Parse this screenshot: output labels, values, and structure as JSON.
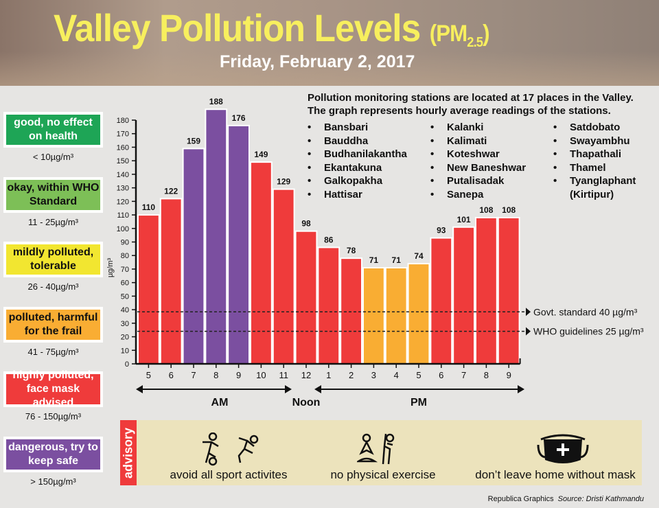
{
  "header": {
    "title": "Valley Pollution Levels",
    "pm": "(PM",
    "pm_sub": "2.5",
    "pm_close": ")",
    "date": "Friday, February 2, 2017"
  },
  "legend": [
    {
      "label": "good, no effect on health",
      "range": "< 10µg/m³",
      "color": "#1ea556",
      "text_color": "#ffffff"
    },
    {
      "label": "okay, within WHO Standard",
      "range": "11 - 25µg/m³",
      "color": "#7dbf57",
      "text_color": "#111111"
    },
    {
      "label": "mildly polluted, tolerable",
      "range": "26 - 40µg/m³",
      "color": "#f2e630",
      "text_color": "#111111"
    },
    {
      "label": "polluted, harmful for the frail",
      "range": "41 - 75µg/m³",
      "color": "#f9ad33",
      "text_color": "#111111"
    },
    {
      "label": "highly polluted, face mask advised",
      "range": "76 - 150µg/m³",
      "color": "#ef3b3b",
      "text_color": "#ffffff"
    },
    {
      "label": "dangerous, try to keep safe",
      "range": "> 150µg/m³",
      "color": "#7b4fa0",
      "text_color": "#ffffff"
    }
  ],
  "stations": {
    "intro_1": "Pollution monitoring stations are located at 17 places in the Valley.",
    "intro_2": "The graph represents hourly average readings of the stations.",
    "columns": [
      [
        "Bansbari",
        "Bauddha",
        "Budhanilakantha",
        "Ekantakuna",
        "Galkopakha",
        "Hattisar"
      ],
      [
        "Kalanki",
        "Kalimati",
        "Koteshwar",
        "New Baneshwar",
        "Putalisadak",
        "Sanepa"
      ],
      [
        "Satdobato",
        "Swayambhu",
        "Thapathali",
        "Thamel",
        "Tyanglaphant",
        "(Kirtipur)"
      ]
    ]
  },
  "chart_data": {
    "type": "bar",
    "categories": [
      "5",
      "6",
      "7",
      "8",
      "9",
      "10",
      "11",
      "12",
      "1",
      "2",
      "3",
      "4",
      "5",
      "6",
      "7",
      "8",
      "9"
    ],
    "values": [
      110,
      122,
      159,
      188,
      176,
      149,
      129,
      98,
      86,
      78,
      71,
      71,
      74,
      93,
      101,
      108,
      108
    ],
    "colors": [
      "#ef3b3b",
      "#ef3b3b",
      "#7b4fa0",
      "#7b4fa0",
      "#7b4fa0",
      "#ef3b3b",
      "#ef3b3b",
      "#ef3b3b",
      "#ef3b3b",
      "#ef3b3b",
      "#f9ad33",
      "#f9ad33",
      "#f9ad33",
      "#ef3b3b",
      "#ef3b3b",
      "#ef3b3b",
      "#ef3b3b"
    ],
    "ylabel": "µg/m³",
    "ylim": [
      0,
      180
    ],
    "yticks": [
      0,
      10,
      20,
      30,
      40,
      50,
      60,
      70,
      80,
      90,
      100,
      110,
      120,
      130,
      140,
      150,
      160,
      170,
      180
    ],
    "reference_lines": [
      {
        "label": "Govt. standard",
        "value_label": "40 µg/m³",
        "value": 40
      },
      {
        "label": "WHO guidelines",
        "value_label": "25 µg/m³",
        "value": 25
      }
    ],
    "periods": {
      "am": "AM",
      "noon": "Noon",
      "pm": "PM"
    },
    "grid": false
  },
  "advisory": {
    "tag": "advisory",
    "items": [
      {
        "label": "avoid all sport activites",
        "icon": "sport-icon"
      },
      {
        "label": "no physical exercise",
        "icon": "exercise-icon"
      },
      {
        "label": "don’t leave home without mask",
        "icon": "mask-icon"
      }
    ]
  },
  "footer": {
    "credit": "Republica Graphics",
    "source": "Source: Dristi Kathmandu"
  }
}
